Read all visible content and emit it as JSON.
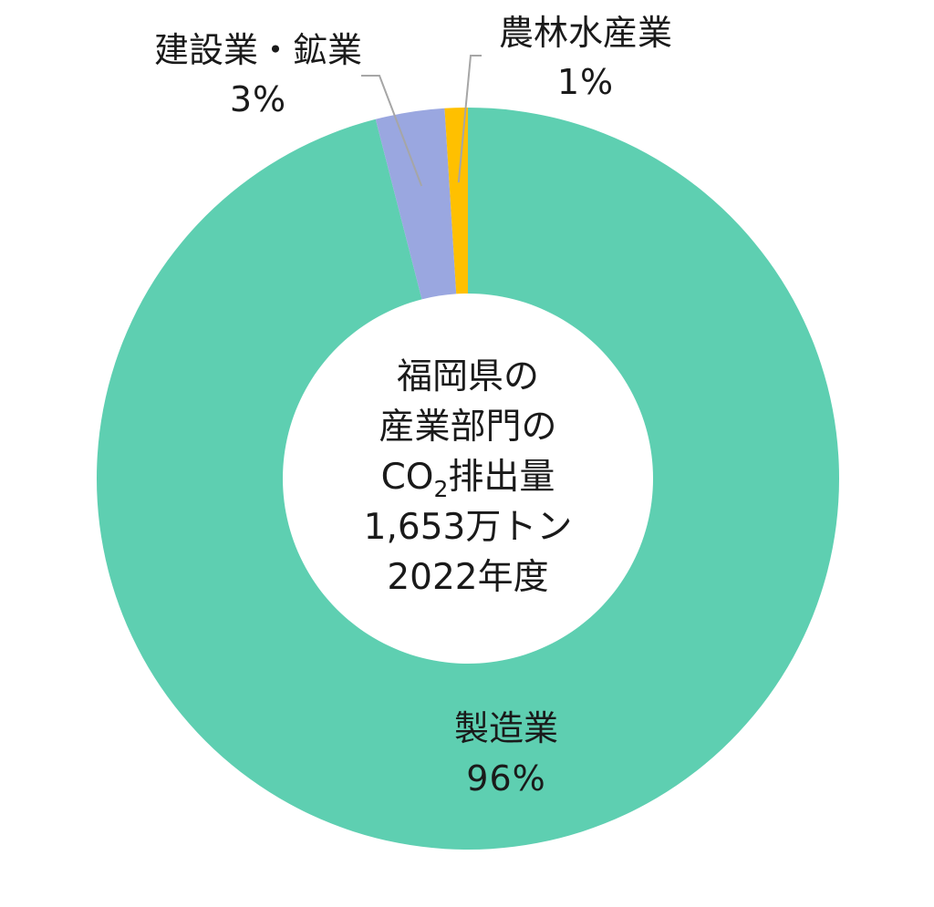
{
  "chart_data": {
    "type": "pie",
    "style": "donut",
    "slices": [
      {
        "label": "製造業",
        "value": 96,
        "value_label": "96%",
        "color": "#5ECFB1"
      },
      {
        "label": "建設業・鉱業",
        "value": 3,
        "value_label": "3%",
        "color": "#9AA7E0"
      },
      {
        "label": "農林水産業",
        "value": 1,
        "value_label": "1%",
        "color": "#FFC000"
      }
    ],
    "center": {
      "line1": "福岡県の",
      "line2": "産業部門の",
      "line3_prefix": "CO",
      "line3_sub": "2",
      "line3_suffix": "排出量",
      "line4": "1,653万トン",
      "line5": "2022年度"
    }
  }
}
